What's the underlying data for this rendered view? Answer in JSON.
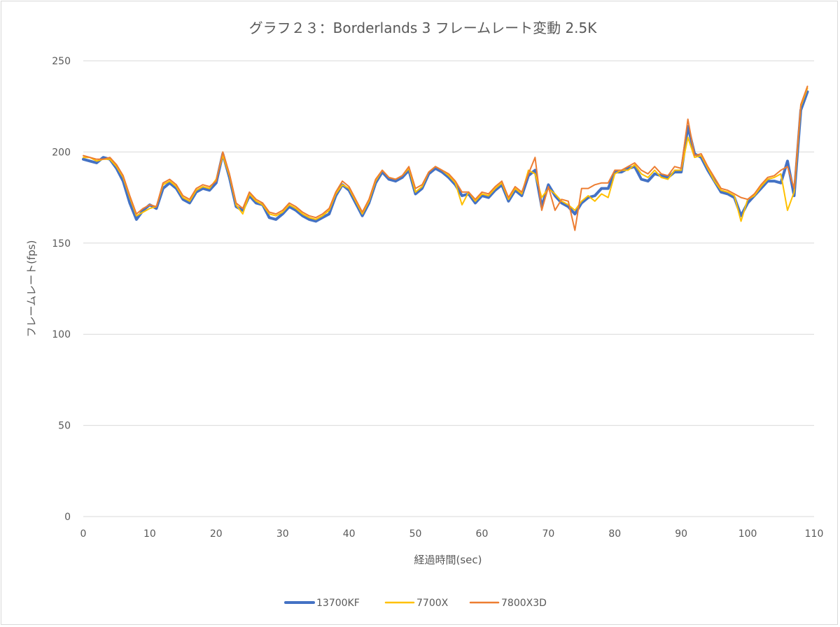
{
  "chart_data": {
    "type": "line",
    "title": "グラフ２３：Borderlands 3 フレームレート変動 2.5K",
    "xlabel": "経過時間(sec)",
    "ylabel": "フレームレート(fps)",
    "xlim": [
      0,
      110
    ],
    "ylim": [
      0,
      250
    ],
    "x_ticks": [
      0,
      10,
      20,
      30,
      40,
      50,
      60,
      70,
      80,
      90,
      100,
      110
    ],
    "y_ticks": [
      0,
      50,
      100,
      150,
      200,
      250
    ],
    "grid": "horizontal",
    "legend_position": "bottom",
    "x": [
      0,
      1,
      2,
      3,
      4,
      5,
      6,
      7,
      8,
      9,
      10,
      11,
      12,
      13,
      14,
      15,
      16,
      17,
      18,
      19,
      20,
      21,
      22,
      23,
      24,
      25,
      26,
      27,
      28,
      29,
      30,
      31,
      32,
      33,
      34,
      35,
      36,
      37,
      38,
      39,
      40,
      41,
      42,
      43,
      44,
      45,
      46,
      47,
      48,
      49,
      50,
      51,
      52,
      53,
      54,
      55,
      56,
      57,
      58,
      59,
      60,
      61,
      62,
      63,
      64,
      65,
      66,
      67,
      68,
      69,
      70,
      71,
      72,
      73,
      74,
      75,
      76,
      77,
      78,
      79,
      80,
      81,
      82,
      83,
      84,
      85,
      86,
      87,
      88,
      89,
      90,
      91,
      92,
      93,
      94,
      95,
      96,
      97,
      98,
      99,
      100,
      101,
      102,
      103,
      104,
      105,
      106,
      107,
      108,
      109
    ],
    "series": [
      {
        "name": "13700KF",
        "color": "#4472c4",
        "width": 4,
        "values": [
          196,
          195,
          194,
          197,
          196,
          191,
          184,
          172,
          163,
          168,
          171,
          169,
          180,
          183,
          180,
          174,
          172,
          178,
          180,
          179,
          183,
          199,
          186,
          170,
          168,
          176,
          172,
          171,
          164,
          163,
          166,
          170,
          168,
          165,
          163,
          162,
          164,
          166,
          176,
          182,
          179,
          172,
          165,
          172,
          183,
          189,
          185,
          184,
          186,
          190,
          177,
          180,
          188,
          191,
          189,
          186,
          182,
          176,
          177,
          172,
          176,
          175,
          179,
          182,
          173,
          179,
          176,
          187,
          190,
          170,
          182,
          176,
          172,
          170,
          166,
          172,
          175,
          176,
          180,
          180,
          189,
          189,
          191,
          192,
          185,
          184,
          188,
          187,
          186,
          189,
          189,
          214,
          199,
          197,
          190,
          184,
          178,
          177,
          175,
          165,
          172,
          176,
          180,
          184,
          184,
          183,
          195,
          176,
          223,
          233
        ]
      },
      {
        "name": "7700X",
        "color": "#ffc000",
        "width": 2,
        "values": [
          197,
          197,
          195,
          196,
          196,
          192,
          186,
          175,
          165,
          167,
          169,
          170,
          182,
          184,
          181,
          175,
          173,
          179,
          181,
          180,
          185,
          198,
          187,
          171,
          166,
          177,
          173,
          171,
          166,
          165,
          167,
          171,
          169,
          166,
          164,
          163,
          165,
          168,
          177,
          182,
          180,
          173,
          166,
          173,
          184,
          190,
          186,
          185,
          187,
          191,
          178,
          181,
          189,
          192,
          190,
          187,
          183,
          171,
          178,
          173,
          177,
          176,
          180,
          183,
          174,
          180,
          177,
          190,
          188,
          175,
          180,
          177,
          173,
          171,
          168,
          173,
          176,
          173,
          177,
          175,
          188,
          190,
          190,
          193,
          188,
          186,
          190,
          186,
          185,
          190,
          190,
          208,
          197,
          198,
          191,
          184,
          179,
          178,
          176,
          162,
          174,
          176,
          181,
          185,
          186,
          188,
          168,
          178,
          225,
          235
        ]
      },
      {
        "name": "7800X3D",
        "color": "#ed7d31",
        "width": 2,
        "values": [
          198,
          197,
          196,
          196,
          197,
          193,
          187,
          176,
          166,
          169,
          171,
          170,
          183,
          185,
          182,
          176,
          174,
          180,
          182,
          181,
          184,
          200,
          188,
          172,
          169,
          178,
          174,
          172,
          167,
          166,
          168,
          172,
          170,
          167,
          165,
          164,
          166,
          169,
          178,
          184,
          181,
          174,
          167,
          174,
          185,
          190,
          186,
          185,
          187,
          192,
          180,
          182,
          189,
          192,
          190,
          188,
          184,
          178,
          178,
          174,
          178,
          177,
          181,
          184,
          175,
          181,
          178,
          188,
          197,
          168,
          181,
          168,
          174,
          173,
          157,
          180,
          180,
          182,
          183,
          183,
          190,
          190,
          192,
          194,
          190,
          188,
          192,
          188,
          187,
          192,
          191,
          218,
          198,
          199,
          192,
          186,
          180,
          179,
          177,
          175,
          174,
          177,
          182,
          186,
          187,
          190,
          192,
          180,
          226,
          236
        ]
      }
    ]
  }
}
